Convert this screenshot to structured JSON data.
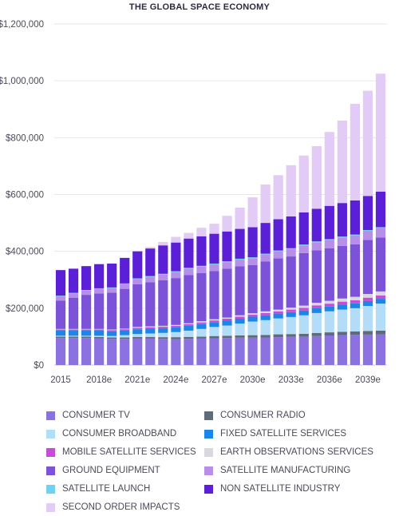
{
  "chart_data": {
    "type": "bar",
    "stacked": true,
    "title": "THE GLOBAL SPACE ECONOMY",
    "xlabel": "",
    "ylabel": "",
    "ylim": [
      0,
      1200000
    ],
    "y_ticks": [
      "$0",
      "$200,000",
      "$400,000",
      "$600,000",
      "$800,000",
      "$1,000,000",
      "$1,200,000"
    ],
    "x_tick_labels": [
      "2015",
      "2018e",
      "2021e",
      "2024e",
      "2027e",
      "2030e",
      "2033e",
      "2036e",
      "2039e"
    ],
    "grid": true,
    "legend_position": "bottom",
    "categories": [
      "2015",
      "2016",
      "2017",
      "2018e",
      "2019e",
      "2020e",
      "2021e",
      "2022e",
      "2023e",
      "2024e",
      "2025e",
      "2026e",
      "2027e",
      "2028e",
      "2029e",
      "2030e",
      "2031e",
      "2032e",
      "2033e",
      "2034e",
      "2035e",
      "2036e",
      "2037e",
      "2038e",
      "2039e",
      "2040e"
    ],
    "series": [
      {
        "name": "CONSUMER TV",
        "color": "#8c72e0",
        "values": [
          95000,
          95000,
          95000,
          94000,
          92000,
          92000,
          93000,
          93000,
          92000,
          91000,
          92000,
          93000,
          94000,
          95000,
          96000,
          96000,
          97000,
          98000,
          99000,
          100000,
          102000,
          104000,
          105000,
          106000,
          107000,
          108000
        ]
      },
      {
        "name": "CONSUMER RADIO",
        "color": "#5f6b78",
        "values": [
          5000,
          5000,
          5000,
          5000,
          5000,
          5000,
          6000,
          6000,
          6000,
          7000,
          7000,
          7000,
          8000,
          8000,
          8000,
          9000,
          9000,
          10000,
          10000,
          10000,
          11000,
          11000,
          12000,
          12000,
          13000,
          13000
        ]
      },
      {
        "name": "CONSUMER BROADBAND",
        "color": "#b3dcf8",
        "values": [
          3000,
          3000,
          3000,
          4000,
          5000,
          8000,
          10000,
          12000,
          15000,
          18000,
          22000,
          27000,
          32000,
          36000,
          42000,
          48000,
          52000,
          56000,
          60000,
          65000,
          70000,
          74000,
          78000,
          82000,
          88000,
          95000
        ]
      },
      {
        "name": "FIXED SATELLITE SERVICES",
        "color": "#1a86e8",
        "values": [
          18000,
          18000,
          18000,
          18000,
          17000,
          17000,
          17000,
          17000,
          17000,
          17000,
          17000,
          17000,
          17000,
          17000,
          17000,
          17000,
          17000,
          17000,
          17000,
          17000,
          17000,
          17000,
          17000,
          17000,
          17000,
          17000
        ]
      },
      {
        "name": "MOBILE SATELLITE SERVICES",
        "color": "#c44fd6",
        "values": [
          4000,
          4000,
          4000,
          4000,
          4000,
          4000,
          5000,
          5000,
          5000,
          5000,
          6000,
          6000,
          6000,
          7000,
          7000,
          7000,
          8000,
          8000,
          9000,
          9000,
          10000,
          10000,
          11000,
          11000,
          12000,
          12000
        ]
      },
      {
        "name": "EARTH OBSERVATIONS SERVICES",
        "color": "#d8d8de",
        "values": [
          2000,
          2000,
          2000,
          2000,
          2000,
          2000,
          3000,
          3000,
          3000,
          3000,
          3000,
          4000,
          4000,
          4000,
          5000,
          5000,
          6000,
          6000,
          7000,
          8000,
          9000,
          10000,
          11000,
          12000,
          13000,
          14000
        ]
      },
      {
        "name": "GROUND EQUIPMENT",
        "color": "#7b52d8",
        "values": [
          100000,
          110000,
          120000,
          125000,
          130000,
          140000,
          150000,
          155000,
          160000,
          165000,
          170000,
          170000,
          170000,
          172000,
          172000,
          170000,
          175000,
          180000,
          180000,
          185000,
          185000,
          185000,
          185000,
          185000,
          190000,
          190000
        ]
      },
      {
        "name": "SATELLITE MANUFACTURING",
        "color": "#b78ee8",
        "values": [
          15000,
          15000,
          15000,
          16000,
          16000,
          17000,
          18000,
          19000,
          20000,
          21000,
          22000,
          22000,
          23000,
          23000,
          24000,
          24000,
          25000,
          25000,
          26000,
          27000,
          28000,
          29000,
          30000,
          31000,
          32000,
          33000
        ]
      },
      {
        "name": "SATELLITE LAUNCH",
        "color": "#6fd2f2",
        "values": [
          2000,
          2000,
          2000,
          2000,
          2000,
          2000,
          3000,
          3000,
          3000,
          3000,
          3000,
          3000,
          3000,
          3000,
          3000,
          3000,
          3000,
          3000,
          3000,
          3000,
          3000,
          3000,
          3000,
          3000,
          3000,
          3000
        ]
      },
      {
        "name": "NON SATELLITE INDUSTRY",
        "color": "#5a1fd6",
        "values": [
          90000,
          85000,
          84000,
          85000,
          84000,
          90000,
          95000,
          97000,
          100000,
          101000,
          103000,
          104000,
          105000,
          105000,
          105000,
          106000,
          108000,
          110000,
          112000,
          113000,
          115000,
          117000,
          118000,
          120000,
          120000,
          125000
        ]
      },
      {
        "name": "SECOND ORDER IMPACTS",
        "color": "#e2cbf4",
        "values": [
          0,
          0,
          0,
          0,
          0,
          0,
          0,
          5000,
          12000,
          20000,
          20000,
          30000,
          35000,
          55000,
          75000,
          105000,
          135000,
          155000,
          180000,
          200000,
          220000,
          260000,
          290000,
          340000,
          370000,
          415000
        ]
      }
    ]
  },
  "legend_order": [
    "CONSUMER TV",
    "CONSUMER RADIO",
    "CONSUMER BROADBAND",
    "FIXED SATELLITE SERVICES",
    "MOBILE SATELLITE SERVICES",
    "EARTH OBSERVATIONS SERVICES",
    "GROUND EQUIPMENT",
    "SATELLITE MANUFACTURING",
    "SATELLITE LAUNCH",
    "NON SATELLITE INDUSTRY",
    "SECOND ORDER IMPACTS"
  ]
}
